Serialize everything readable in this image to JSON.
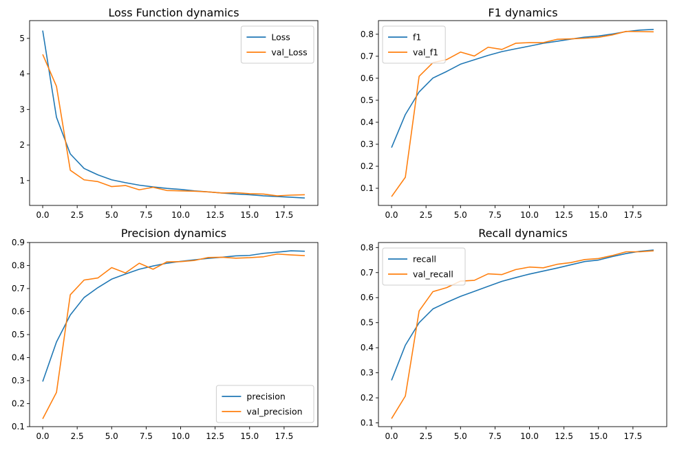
{
  "figure": {
    "colors": {
      "series1": "#1f77b4",
      "series2": "#ff7f0e",
      "axis": "#000000",
      "legend_border": "#cccccc"
    }
  },
  "chart_data": [
    {
      "type": "line",
      "title": "Loss Function dynamics",
      "xlabel": "",
      "ylabel": "",
      "xlim": [
        -0.95,
        19.95
      ],
      "ylim": [
        0.3,
        5.5
      ],
      "xticks": [
        0,
        2.5,
        5,
        7.5,
        10,
        12.5,
        15,
        17.5
      ],
      "xtick_labels": [
        "0.0",
        "2.5",
        "5.0",
        "7.5",
        "10.0",
        "12.5",
        "15.0",
        "17.5"
      ],
      "yticks": [
        1,
        2,
        3,
        4,
        5
      ],
      "ytick_labels": [
        "1",
        "2",
        "3",
        "4",
        "5"
      ],
      "legend_position": "top-right",
      "grid": false,
      "x": [
        0,
        1,
        2,
        3,
        4,
        5,
        6,
        7,
        8,
        9,
        10,
        11,
        12,
        13,
        14,
        15,
        16,
        17,
        18,
        19
      ],
      "series": [
        {
          "name": "Loss",
          "color": "#1f77b4",
          "values": [
            5.22,
            2.78,
            1.75,
            1.34,
            1.16,
            1.02,
            0.94,
            0.87,
            0.82,
            0.78,
            0.75,
            0.71,
            0.68,
            0.65,
            0.62,
            0.6,
            0.57,
            0.55,
            0.53,
            0.51
          ]
        },
        {
          "name": "val_Loss",
          "color": "#ff7f0e",
          "values": [
            4.55,
            3.65,
            1.29,
            1.02,
            0.97,
            0.83,
            0.86,
            0.74,
            0.81,
            0.72,
            0.71,
            0.7,
            0.68,
            0.65,
            0.66,
            0.63,
            0.62,
            0.57,
            0.59,
            0.6
          ]
        }
      ]
    },
    {
      "type": "line",
      "title": "F1 dynamics",
      "xlabel": "",
      "ylabel": "",
      "xlim": [
        -0.95,
        19.95
      ],
      "ylim": [
        0.022,
        0.862
      ],
      "xticks": [
        0,
        2.5,
        5,
        7.5,
        10,
        12.5,
        15,
        17.5
      ],
      "xtick_labels": [
        "0.0",
        "2.5",
        "5.0",
        "7.5",
        "10.0",
        "12.5",
        "15.0",
        "17.5"
      ],
      "yticks": [
        0.1,
        0.2,
        0.3,
        0.4,
        0.5,
        0.6,
        0.7,
        0.8
      ],
      "ytick_labels": [
        "0.1",
        "0.2",
        "0.3",
        "0.4",
        "0.5",
        "0.6",
        "0.7",
        "0.8"
      ],
      "legend_position": "top-left",
      "grid": false,
      "x": [
        0,
        1,
        2,
        3,
        4,
        5,
        6,
        7,
        8,
        9,
        10,
        11,
        12,
        13,
        14,
        15,
        16,
        17,
        18,
        19
      ],
      "series": [
        {
          "name": "f1",
          "color": "#1f77b4",
          "values": [
            0.285,
            0.435,
            0.538,
            0.601,
            0.631,
            0.664,
            0.684,
            0.704,
            0.721,
            0.734,
            0.746,
            0.759,
            0.768,
            0.778,
            0.787,
            0.792,
            0.801,
            0.812,
            0.819,
            0.822
          ]
        },
        {
          "name": "val_f1",
          "color": "#ff7f0e",
          "values": [
            0.062,
            0.15,
            0.609,
            0.671,
            0.685,
            0.719,
            0.701,
            0.741,
            0.731,
            0.759,
            0.762,
            0.762,
            0.777,
            0.779,
            0.782,
            0.786,
            0.797,
            0.813,
            0.812,
            0.811
          ]
        }
      ]
    },
    {
      "type": "line",
      "title": "Precision dynamics",
      "xlabel": "",
      "ylabel": "",
      "xlim": [
        -0.95,
        19.95
      ],
      "ylim": [
        0.1,
        0.9
      ],
      "xticks": [
        0,
        2.5,
        5,
        7.5,
        10,
        12.5,
        15,
        17.5
      ],
      "xtick_labels": [
        "0.0",
        "2.5",
        "5.0",
        "7.5",
        "10.0",
        "12.5",
        "15.0",
        "17.5"
      ],
      "yticks": [
        0.1,
        0.2,
        0.3,
        0.4,
        0.5,
        0.6,
        0.7,
        0.8,
        0.9
      ],
      "ytick_labels": [
        "0.1",
        "0.2",
        "0.3",
        "0.4",
        "0.5",
        "0.6",
        "0.7",
        "0.8",
        "0.9"
      ],
      "legend_position": "bottom-right",
      "grid": false,
      "x": [
        0,
        1,
        2,
        3,
        4,
        5,
        6,
        7,
        8,
        9,
        10,
        11,
        12,
        13,
        14,
        15,
        16,
        17,
        18,
        19
      ],
      "series": [
        {
          "name": "precision",
          "color": "#1f77b4",
          "values": [
            0.296,
            0.468,
            0.585,
            0.661,
            0.704,
            0.741,
            0.763,
            0.784,
            0.798,
            0.81,
            0.818,
            0.825,
            0.831,
            0.836,
            0.842,
            0.844,
            0.853,
            0.858,
            0.864,
            0.862
          ]
        },
        {
          "name": "val_precision",
          "color": "#ff7f0e",
          "values": [
            0.134,
            0.249,
            0.673,
            0.737,
            0.746,
            0.791,
            0.768,
            0.81,
            0.784,
            0.816,
            0.817,
            0.822,
            0.835,
            0.836,
            0.832,
            0.834,
            0.838,
            0.85,
            0.846,
            0.843
          ]
        }
      ]
    },
    {
      "type": "line",
      "title": "Recall dynamics",
      "xlabel": "",
      "ylabel": "",
      "xlim": [
        -0.95,
        19.95
      ],
      "ylim": [
        0.085,
        0.82
      ],
      "xticks": [
        0,
        2.5,
        5,
        7.5,
        10,
        12.5,
        15,
        17.5
      ],
      "xtick_labels": [
        "0.0",
        "2.5",
        "5.0",
        "7.5",
        "10.0",
        "12.5",
        "15.0",
        "17.5"
      ],
      "yticks": [
        0.1,
        0.2,
        0.3,
        0.4,
        0.5,
        0.6,
        0.7,
        0.8
      ],
      "ytick_labels": [
        "0.1",
        "0.2",
        "0.3",
        "0.4",
        "0.5",
        "0.6",
        "0.7",
        "0.8"
      ],
      "legend_position": "top-left",
      "grid": false,
      "x": [
        0,
        1,
        2,
        3,
        4,
        5,
        6,
        7,
        8,
        9,
        10,
        11,
        12,
        13,
        14,
        15,
        16,
        17,
        18,
        19
      ],
      "series": [
        {
          "name": "recall",
          "color": "#1f77b4",
          "values": [
            0.27,
            0.41,
            0.5,
            0.555,
            0.581,
            0.605,
            0.625,
            0.645,
            0.665,
            0.68,
            0.694,
            0.706,
            0.718,
            0.731,
            0.744,
            0.75,
            0.764,
            0.776,
            0.785,
            0.79
          ]
        },
        {
          "name": "val_recall",
          "color": "#ff7f0e",
          "values": [
            0.117,
            0.207,
            0.547,
            0.624,
            0.64,
            0.666,
            0.669,
            0.695,
            0.692,
            0.712,
            0.722,
            0.719,
            0.733,
            0.74,
            0.752,
            0.756,
            0.768,
            0.783,
            0.783,
            0.787
          ]
        }
      ]
    }
  ]
}
